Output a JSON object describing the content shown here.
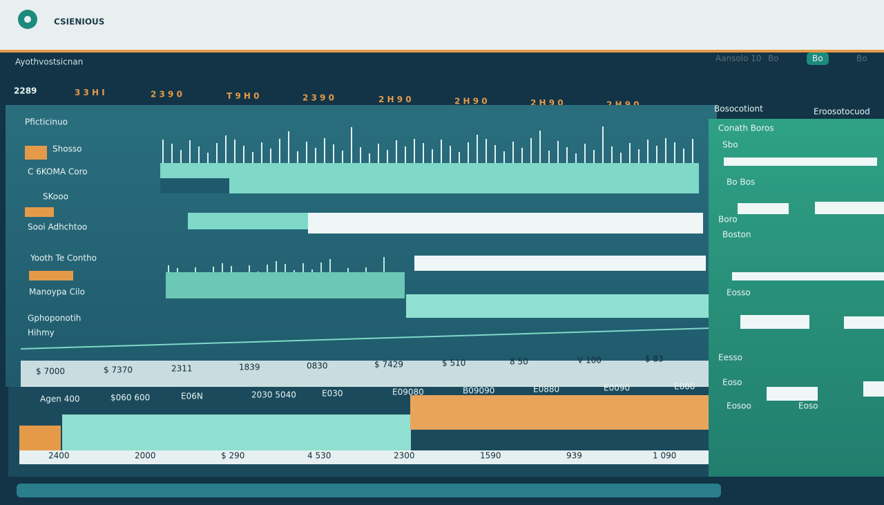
{
  "header": {
    "brand": "CSIENIOUS",
    "subtitle": "Ayothvostsicnan",
    "nav": [
      "Aansolo 10",
      "Bo",
      "Bo",
      "Bo"
    ]
  },
  "stats": [
    "2289",
    "3 3 H I",
    "2 3 9 0",
    "T 9 H 0",
    "2 3 9 0",
    "2 H 9 0",
    "2 H 9 0",
    "2 H 9 0",
    "2 H 9 0"
  ],
  "panel": {
    "title": "Pficticinuo",
    "labels": [
      "Shosso",
      "C 6KOMA Coro",
      "SKooo",
      "Sooi Adhchtoo",
      "Yooth Te Contho",
      "Manoypa Cilo",
      "Gphoponotih",
      "Hihmy"
    ],
    "values": [
      "$ 7000",
      "$ 7370",
      "2311",
      "1839",
      "0830",
      "$ 7429",
      "$ 510",
      "8 50",
      "V 100",
      "$ 83"
    ]
  },
  "bottom": {
    "labels": [
      "Agen 400",
      "$060 600",
      "E06N",
      "2030 5040",
      "E030",
      "E09080",
      "B09090",
      "E0880",
      "E0090",
      "E000"
    ],
    "axis": [
      "2400",
      "2000",
      "$ 290",
      "4 530",
      "2300",
      "1590",
      "939",
      "1 090"
    ]
  },
  "side": {
    "title": "Bosocotiont",
    "subtitle": "Eroosotocuod",
    "labels": [
      "Conath Boros",
      "Sbo",
      "Bo Bos",
      "Boro",
      "Boston",
      "Eosso",
      "Eesso",
      "Eoso",
      "Eosoo",
      "Eoso"
    ]
  }
}
